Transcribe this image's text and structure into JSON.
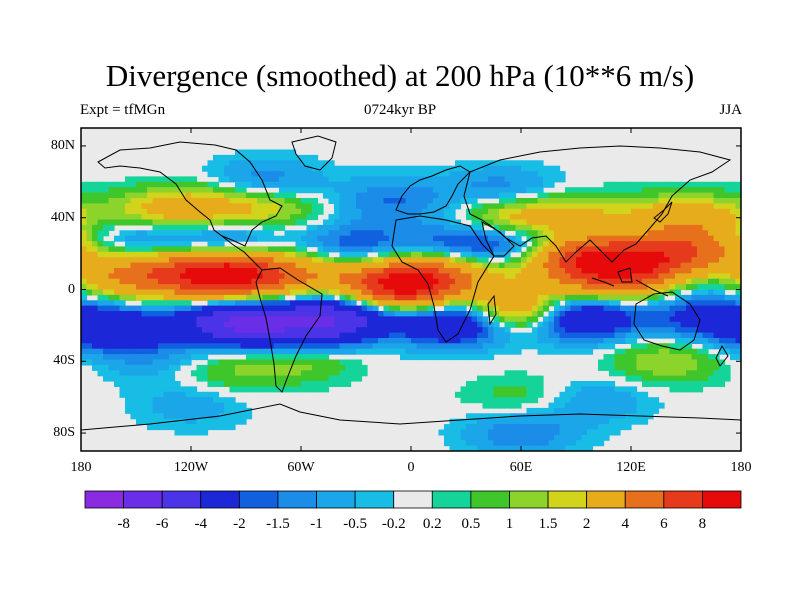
{
  "title": "Divergence (smoothed) at 200 hPa (10**6 m/s)",
  "experiment": "Expt = tfMGn",
  "period": "0724kyr BP",
  "season": "JJA",
  "lat_ticks": [
    "80N",
    "40N",
    "0",
    "40S",
    "80S"
  ],
  "lon_ticks": [
    "180",
    "120W",
    "60W",
    "0",
    "60E",
    "120E",
    "180"
  ],
  "colorbar": {
    "labels": [
      "-8",
      "-6",
      "-4",
      "-2",
      "-1.5",
      "-1",
      "-0.5",
      "-0.2",
      "0.2",
      "0.5",
      "1",
      "1.5",
      "2",
      "4",
      "6",
      "8"
    ],
    "colors": [
      "#8a2be2",
      "#6a2ee6",
      "#4b34e8",
      "#1c28d8",
      "#1160e0",
      "#1b8ce8",
      "#1aa6e8",
      "#18bde6",
      "#eaeaea",
      "#14d49a",
      "#3ec62a",
      "#8cd42c",
      "#d2d41c",
      "#e6ac1c",
      "#e6701c",
      "#e63a1c",
      "#e60a0a"
    ]
  },
  "chart_data": {
    "type": "heatmap",
    "title": "Divergence (smoothed) at 200 hPa (10**6 m/s)",
    "subtitle_left": "Expt = tfMGn",
    "subtitle_center": "0724kyr BP",
    "subtitle_right": "JJA",
    "xlim": [
      -180,
      180
    ],
    "ylim": [
      -90,
      90
    ],
    "x_ticks": [
      "180",
      "120W",
      "60W",
      "0",
      "60E",
      "120E",
      "180"
    ],
    "y_ticks": [
      "80N",
      "40N",
      "0",
      "40S",
      "80S"
    ],
    "contour_levels": [
      -8,
      -6,
      -4,
      -2,
      -1.5,
      -1,
      -0.5,
      -0.2,
      0.2,
      0.5,
      1,
      1.5,
      2,
      4,
      6,
      8
    ],
    "features": [
      {
        "lon": -100,
        "lat": 8,
        "value": 9
      },
      {
        "lon": -140,
        "lat": 8,
        "value": 4
      },
      {
        "lon": -170,
        "lat": 8,
        "value": 2
      },
      {
        "lon": -60,
        "lat": 8,
        "value": 3
      },
      {
        "lon": -5,
        "lat": 2,
        "value": 9
      },
      {
        "lon": 20,
        "lat": 10,
        "value": 3
      },
      {
        "lon": 92,
        "lat": 18,
        "value": 7
      },
      {
        "lon": 110,
        "lat": 5,
        "value": 4
      },
      {
        "lon": 130,
        "lat": 15,
        "value": 5
      },
      {
        "lon": 155,
        "lat": 22,
        "value": 4
      },
      {
        "lon": -150,
        "lat": 40,
        "value": 1.5
      },
      {
        "lon": -120,
        "lat": 45,
        "value": 2.5
      },
      {
        "lon": -80,
        "lat": 45,
        "value": 2
      },
      {
        "lon": 55,
        "lat": 40,
        "value": 2.5
      },
      {
        "lon": 90,
        "lat": 40,
        "value": 2
      },
      {
        "lon": 150,
        "lat": 40,
        "value": 3
      },
      {
        "lon": 60,
        "lat": -12,
        "value": 5
      },
      {
        "lon": 140,
        "lat": -40,
        "value": 1.5
      },
      {
        "lon": -60,
        "lat": -38,
        "value": 1.5
      },
      {
        "lon": -100,
        "lat": -45,
        "value": 1
      },
      {
        "lon": -160,
        "lat": -22,
        "value": -3.5
      },
      {
        "lon": -95,
        "lat": -18,
        "value": -6
      },
      {
        "lon": -40,
        "lat": -15,
        "value": -5
      },
      {
        "lon": 25,
        "lat": -18,
        "value": -4.5
      },
      {
        "lon": 90,
        "lat": -15,
        "value": -5
      },
      {
        "lon": 160,
        "lat": -15,
        "value": -2.5
      },
      {
        "lon": -60,
        "lat": -25,
        "value": -2.5
      },
      {
        "lon": 30,
        "lat": 25,
        "value": -2.5
      },
      {
        "lon": 70,
        "lat": 25,
        "value": -2.5
      },
      {
        "lon": -100,
        "lat": 28,
        "value": -2
      },
      {
        "lon": -30,
        "lat": 25,
        "value": -2
      },
      {
        "lon": -150,
        "lat": 30,
        "value": -2
      },
      {
        "lon": 160,
        "lat": 8,
        "value": -1.5
      },
      {
        "lon": 50,
        "lat": 55,
        "value": -1.5
      },
      {
        "lon": -10,
        "lat": 50,
        "value": -1.5
      },
      {
        "lon": 60,
        "lat": -80,
        "value": -1.5
      },
      {
        "lon": 100,
        "lat": -62,
        "value": -1
      },
      {
        "lon": -80,
        "lat": 60,
        "value": -1.5
      },
      {
        "lon": -140,
        "lat": -40,
        "value": -0.8
      },
      {
        "lon": 60,
        "lat": -60,
        "value": 0.8
      },
      {
        "lon": -120,
        "lat": -65,
        "value": -0.8
      }
    ]
  }
}
